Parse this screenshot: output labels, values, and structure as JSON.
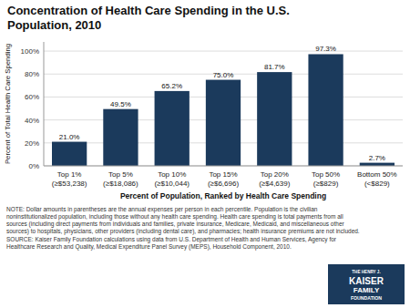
{
  "chart_data": {
    "type": "bar",
    "title": "Concentration of Health Care Spending in the U.S.\nPopulation, 2010",
    "categories": [
      "Top 1%\n(≥$53,238)",
      "Top 5%\n(≥$18,086)",
      "Top 10%\n(≥$10,044)",
      "Top 15%\n(≥$6,696)",
      "Top 20%\n(≥$4,639)",
      "Top 50%\n(≥$829)",
      "Bottom 50%\n(<$829)"
    ],
    "values": [
      21.0,
      49.5,
      65.2,
      75.0,
      81.7,
      97.3,
      2.7
    ],
    "value_labels": [
      "21.0%",
      "49.5%",
      "65.2%",
      "75.0%",
      "81.7%",
      "97.3%",
      "2.7%"
    ],
    "data_labels": true,
    "color": "#1b3a5c",
    "ylabel": "Percent of Total Health Care Spending",
    "xlabel": "Percent of Population, Ranked by Health Care Spending",
    "ylim": [
      0,
      108
    ],
    "yticks": [
      {
        "value": 0,
        "label": "0%"
      },
      {
        "value": 20,
        "label": "20%"
      },
      {
        "value": 40,
        "label": "40%"
      },
      {
        "value": 60,
        "label": "60%"
      },
      {
        "value": 80,
        "label": "80%"
      },
      {
        "value": 100,
        "label": "100%"
      }
    ],
    "grid": true,
    "note": "NOTE: Dollar amounts in parentheses are the annual expenses per person in each percentile. Population is the civilian\nnoninstitutionalized population, including those without any health care spending. Health care spending is total payments from all\nsources (including direct payments from individuals and families, private insurance, Medicare, Medicaid, and miscellaneous other\nsources) to hospitals, physicians, other providers (including dental care), and pharmacies; health insurance premiums are not included.\nSOURCE: Kaiser Family Foundation calculations using data from U.S. Department of Health and Human Services, Agency for\nHealthcare Research and Quality, Medical Expenditure Panel Survey (MEPS), Household Component, 2010.",
    "logo": [
      "THE HENRY J.",
      "KAISER",
      "FAMILY",
      "FOUNDATION"
    ]
  }
}
